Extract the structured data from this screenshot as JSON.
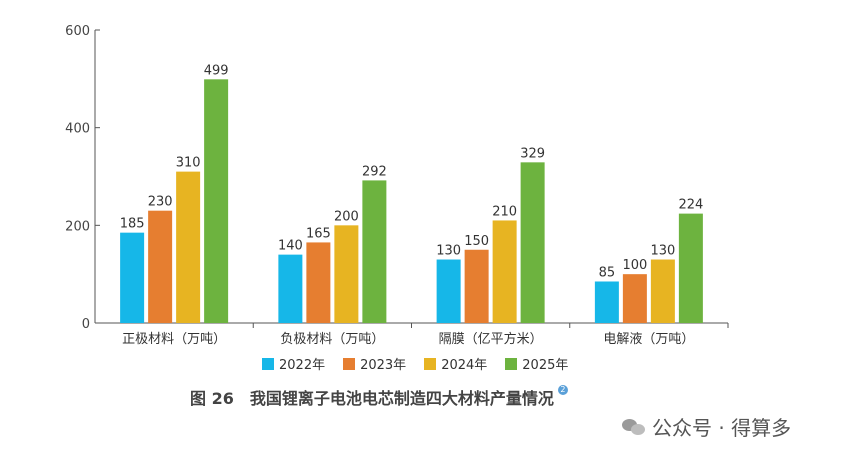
{
  "chart_data": {
    "type": "bar",
    "categories": [
      "正极材料（万吨）",
      "负极材料（万吨）",
      "隔膜（亿平方米）",
      "电解液（万吨）"
    ],
    "series": [
      {
        "name": "2022年",
        "color": "#16b7e8",
        "values": [
          185,
          140,
          130,
          85
        ]
      },
      {
        "name": "2023年",
        "color": "#e67e30",
        "values": [
          230,
          165,
          150,
          100
        ]
      },
      {
        "name": "2024年",
        "color": "#e7b422",
        "values": [
          310,
          200,
          210,
          130
        ]
      },
      {
        "name": "2025年",
        "color": "#6db33f",
        "values": [
          499,
          292,
          329,
          224
        ]
      }
    ],
    "data_labels": [
      [
        "185",
        "140",
        "130",
        "85"
      ],
      [
        "230",
        "165",
        "150",
        "100"
      ],
      [
        "310",
        "200",
        "210",
        "130"
      ],
      [
        "499",
        "292",
        "329",
        "224"
      ]
    ],
    "ylim": [
      0,
      600
    ],
    "yticks": [
      0,
      200,
      400,
      600
    ],
    "ytick_labels": [
      "0",
      "200",
      "400",
      "600"
    ],
    "grid": false,
    "legend_position": "bottom"
  },
  "caption": {
    "figure_number": "图 26",
    "title": "我国锂离子电池电芯制造四大材料产量情况",
    "note_marker": "2"
  },
  "watermark": {
    "text": "公众号 · 得算多",
    "icon": "wechat-icon"
  }
}
